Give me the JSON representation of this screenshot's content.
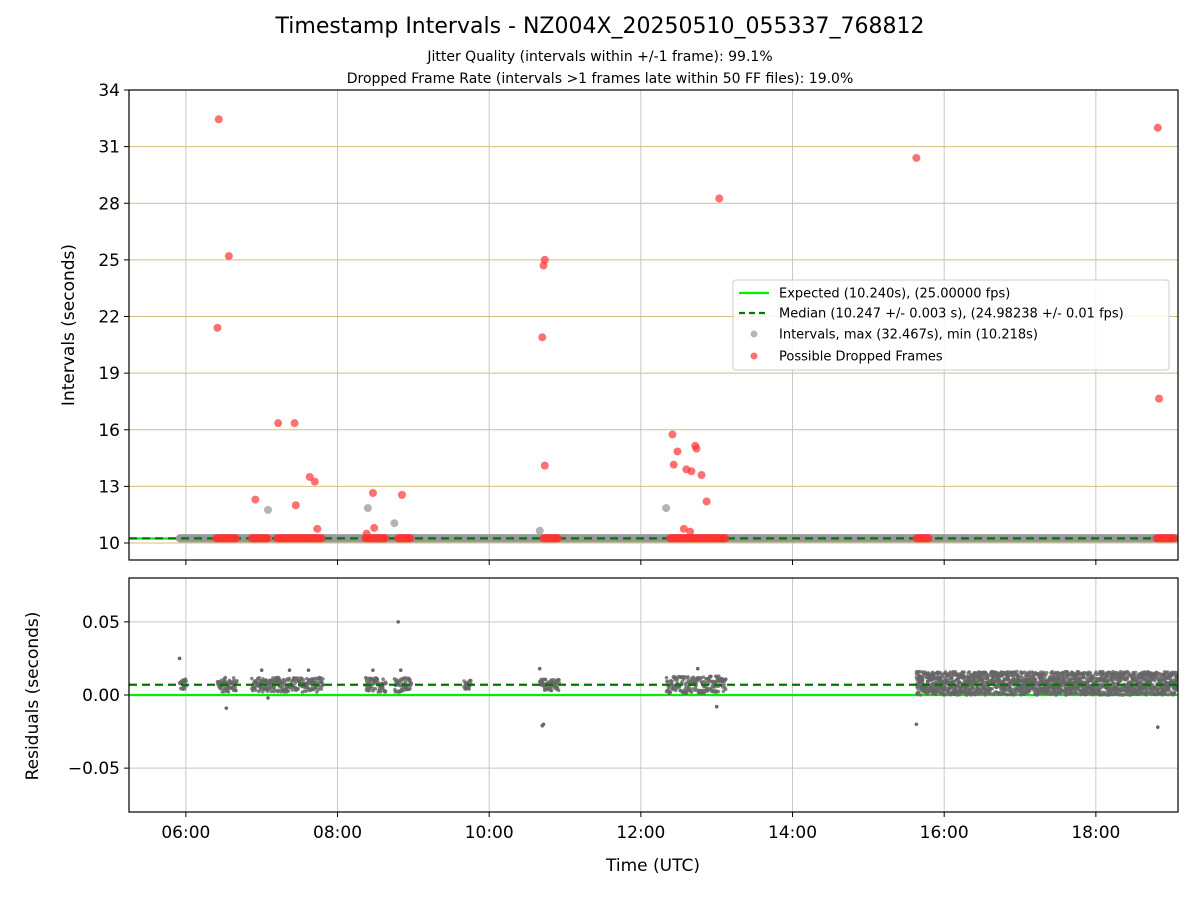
{
  "title": "Timestamp Intervals - NZ004X_20250510_055337_768812",
  "subtitles": [
    "Jitter Quality (intervals within +/-1 frame): 99.1%",
    "Dropped Frame Rate (intervals >1 frames late within 50 FF files): 19.0%"
  ],
  "colors": {
    "expected_line": "#00ee00",
    "median_line": "#007700",
    "interval_points": "#999999",
    "dropped_points": "#ff3333",
    "residual_points": "#666666",
    "gridlines_y_top": "#d4bf7a",
    "gridlines": "#c8c8c8"
  },
  "chart_data": [
    {
      "type": "scatter",
      "panel": "intervals",
      "xlabel": "",
      "ylabel": "Intervals (seconds)",
      "xlim": [
        "05:15",
        "19:05"
      ],
      "ylim": [
        9.1,
        34
      ],
      "yticks": [
        "10",
        "13",
        "16",
        "19",
        "22",
        "25",
        "28",
        "31",
        "34"
      ],
      "ytick_values": [
        10,
        13,
        16,
        19,
        22,
        25,
        28,
        31,
        34
      ],
      "grid": "on",
      "legend_position": "center-right",
      "expected_value": 10.24,
      "median_value": 10.247,
      "legend": [
        "Expected (10.240s), (25.00000 fps)",
        "Median (10.247 +/- 0.003 s), (24.98238 +/- 0.01 fps)",
        "Intervals, max (32.467s), min (10.218s)",
        "Possible Dropped Frames"
      ],
      "intervals_band": {
        "x_start": "05:55",
        "x_end": "19:05",
        "y": 10.25
      },
      "intervals_extra": [
        {
          "x": "07:05",
          "y": 11.75
        },
        {
          "x": "08:24",
          "y": 11.85
        },
        {
          "x": "08:45",
          "y": 11.05
        },
        {
          "x": "10:40",
          "y": 10.65
        },
        {
          "x": "12:20",
          "y": 11.85
        }
      ],
      "dropped_clusters": [
        {
          "x_start": "06:24",
          "x_end": "06:40",
          "y": 10.25
        },
        {
          "x_start": "06:52",
          "x_end": "07:05",
          "y": 10.25
        },
        {
          "x_start": "07:12",
          "x_end": "07:48",
          "y": 10.25
        },
        {
          "x_start": "08:22",
          "x_end": "08:38",
          "y": 10.25
        },
        {
          "x_start": "08:48",
          "x_end": "08:58",
          "y": 10.25
        },
        {
          "x_start": "10:43",
          "x_end": "10:55",
          "y": 10.25
        },
        {
          "x_start": "12:23",
          "x_end": "13:07",
          "y": 10.25
        },
        {
          "x_start": "15:38",
          "x_end": "15:48",
          "y": 10.25
        },
        {
          "x_start": "18:48",
          "x_end": "19:02",
          "y": 10.25
        }
      ],
      "dropped_points": [
        {
          "x": "06:26",
          "y": 32.45
        },
        {
          "x": "06:34",
          "y": 25.2
        },
        {
          "x": "06:25",
          "y": 21.4
        },
        {
          "x": "07:13",
          "y": 16.35
        },
        {
          "x": "07:26",
          "y": 16.35
        },
        {
          "x": "06:55",
          "y": 12.3
        },
        {
          "x": "07:27",
          "y": 12.0
        },
        {
          "x": "07:38",
          "y": 13.5
        },
        {
          "x": "07:42",
          "y": 13.25
        },
        {
          "x": "07:44",
          "y": 10.75
        },
        {
          "x": "08:23",
          "y": 10.5
        },
        {
          "x": "08:28",
          "y": 12.65
        },
        {
          "x": "08:29",
          "y": 10.8
        },
        {
          "x": "08:51",
          "y": 12.55
        },
        {
          "x": "10:43",
          "y": 24.7
        },
        {
          "x": "10:44",
          "y": 25.0
        },
        {
          "x": "10:42",
          "y": 20.9
        },
        {
          "x": "10:44",
          "y": 14.1
        },
        {
          "x": "12:25",
          "y": 15.75
        },
        {
          "x": "12:29",
          "y": 14.85
        },
        {
          "x": "12:26",
          "y": 14.15
        },
        {
          "x": "12:36",
          "y": 13.9
        },
        {
          "x": "12:40",
          "y": 13.8
        },
        {
          "x": "12:43",
          "y": 15.15
        },
        {
          "x": "12:44",
          "y": 15.0
        },
        {
          "x": "12:48",
          "y": 13.6
        },
        {
          "x": "12:52",
          "y": 12.2
        },
        {
          "x": "12:34",
          "y": 10.75
        },
        {
          "x": "12:39",
          "y": 10.6
        },
        {
          "x": "13:02",
          "y": 28.25
        },
        {
          "x": "15:38",
          "y": 30.4
        },
        {
          "x": "18:49",
          "y": 32.0
        },
        {
          "x": "18:50",
          "y": 17.65
        }
      ]
    },
    {
      "type": "scatter",
      "panel": "residuals",
      "xlabel": "Time (UTC)",
      "ylabel": "Residuals (seconds)",
      "xlim": [
        "05:15",
        "19:05"
      ],
      "ylim": [
        -0.08,
        0.08
      ],
      "xticks": [
        "06:00",
        "08:00",
        "10:00",
        "12:00",
        "14:00",
        "16:00",
        "18:00"
      ],
      "yticks": [
        "0.05",
        "0.00",
        "−0.05"
      ],
      "ytick_values": [
        0.05,
        0.0,
        -0.05
      ],
      "grid": "on",
      "expected_value": 0.0,
      "median_value": 0.007,
      "residual_clusters": [
        {
          "x_start": "05:55",
          "x_end": "06:00",
          "center": 0.007,
          "spread": 0.004
        },
        {
          "x_start": "06:25",
          "x_end": "06:40",
          "center": 0.007,
          "spread": 0.005
        },
        {
          "x_start": "06:52",
          "x_end": "07:48",
          "center": 0.007,
          "spread": 0.005
        },
        {
          "x_start": "08:22",
          "x_end": "08:38",
          "center": 0.007,
          "spread": 0.005
        },
        {
          "x_start": "08:45",
          "x_end": "08:58",
          "center": 0.007,
          "spread": 0.005
        },
        {
          "x_start": "09:40",
          "x_end": "09:45",
          "center": 0.007,
          "spread": 0.003
        },
        {
          "x_start": "10:40",
          "x_end": "10:55",
          "center": 0.007,
          "spread": 0.004
        },
        {
          "x_start": "12:20",
          "x_end": "13:07",
          "center": 0.007,
          "spread": 0.006
        },
        {
          "x_start": "15:38",
          "x_end": "19:05",
          "center": 0.008,
          "spread": 0.008
        }
      ],
      "residual_points": [
        {
          "x": "05:55",
          "y": 0.025
        },
        {
          "x": "06:32",
          "y": -0.009
        },
        {
          "x": "07:05",
          "y": -0.002
        },
        {
          "x": "07:00",
          "y": 0.017
        },
        {
          "x": "07:22",
          "y": 0.017
        },
        {
          "x": "07:37",
          "y": 0.017
        },
        {
          "x": "08:28",
          "y": 0.017
        },
        {
          "x": "08:48",
          "y": 0.05
        },
        {
          "x": "08:50",
          "y": 0.017
        },
        {
          "x": "10:40",
          "y": 0.018
        },
        {
          "x": "10:42",
          "y": -0.021
        },
        {
          "x": "10:43",
          "y": -0.02
        },
        {
          "x": "12:45",
          "y": 0.018
        },
        {
          "x": "13:00",
          "y": -0.008
        },
        {
          "x": "15:38",
          "y": -0.02
        },
        {
          "x": "18:49",
          "y": -0.022
        }
      ]
    }
  ]
}
